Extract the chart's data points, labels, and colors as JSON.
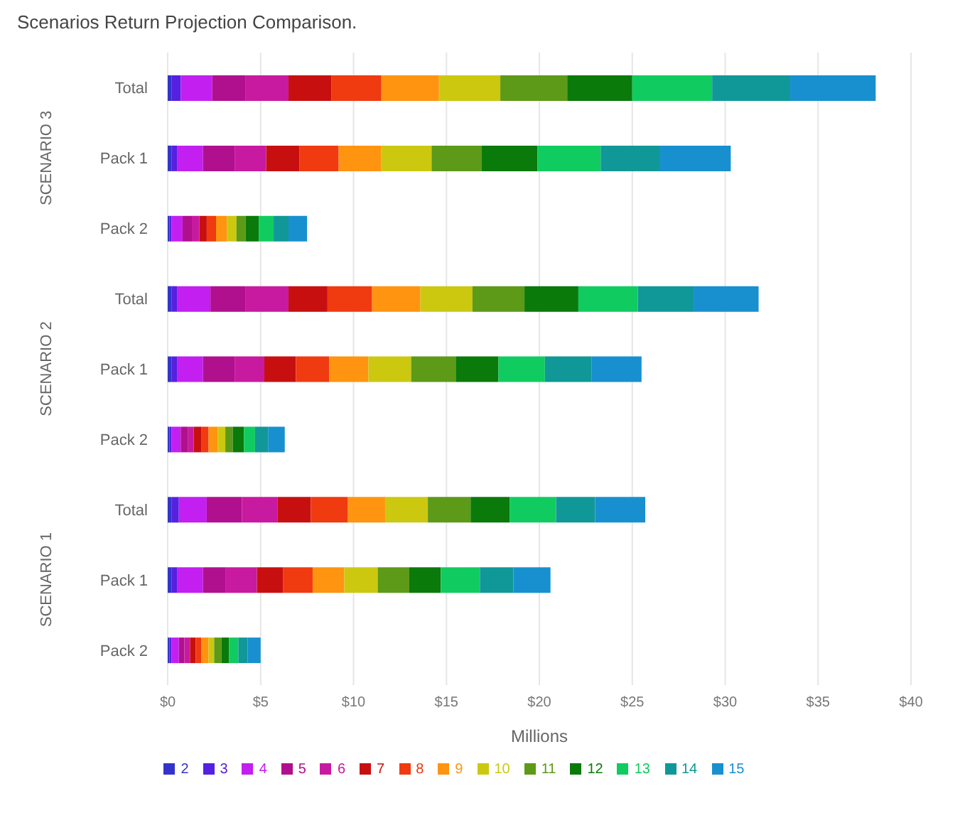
{
  "chart_data": {
    "type": "bar",
    "orientation": "horizontal",
    "stacked": true,
    "title": "Scenarios Return Projection Comparison.",
    "xlabel": "Millions",
    "categories": [
      "Total",
      "Pack 1",
      "Pack 2",
      "Total",
      "Pack 1",
      "Pack 2",
      "Total",
      "Pack 1",
      "Pack 2"
    ],
    "annotations": [
      "SCENARIO 3",
      "SCENARIO 2",
      "SCENARIO 1"
    ],
    "series": [
      {
        "name": "2",
        "color": "#3333cc",
        "values": [
          0.2,
          0.2,
          0.1,
          0.2,
          0.2,
          0.1,
          0.2,
          0.2,
          0.1
        ]
      },
      {
        "name": "3",
        "color": "#5520e0",
        "values": [
          0.5,
          0.3,
          0.1,
          0.3,
          0.3,
          0.1,
          0.4,
          0.3,
          0.1
        ]
      },
      {
        "name": "4",
        "color": "#c21ff0",
        "values": [
          1.7,
          1.4,
          0.6,
          1.8,
          1.4,
          0.5,
          1.5,
          1.4,
          0.4
        ]
      },
      {
        "name": "5",
        "color": "#b0108e",
        "values": [
          1.8,
          1.7,
          0.5,
          1.9,
          1.7,
          0.4,
          1.9,
          1.2,
          0.3
        ]
      },
      {
        "name": "6",
        "color": "#c81aa0",
        "values": [
          2.3,
          1.7,
          0.4,
          2.3,
          1.6,
          0.3,
          1.9,
          1.7,
          0.3
        ]
      },
      {
        "name": "7",
        "color": "#c80f10",
        "values": [
          2.3,
          1.8,
          0.4,
          2.1,
          1.7,
          0.4,
          1.8,
          1.4,
          0.3
        ]
      },
      {
        "name": "8",
        "color": "#f03a10",
        "values": [
          2.7,
          2.1,
          0.5,
          2.4,
          1.8,
          0.4,
          2.0,
          1.6,
          0.3
        ]
      },
      {
        "name": "9",
        "color": "#ff9410",
        "values": [
          3.1,
          2.3,
          0.6,
          2.6,
          2.1,
          0.5,
          2.0,
          1.7,
          0.4
        ]
      },
      {
        "name": "10",
        "color": "#ccc810",
        "values": [
          3.3,
          2.7,
          0.5,
          2.8,
          2.3,
          0.4,
          2.3,
          1.8,
          0.3
        ]
      },
      {
        "name": "11",
        "color": "#5c9a18",
        "values": [
          3.6,
          2.7,
          0.5,
          2.8,
          2.4,
          0.4,
          2.3,
          1.7,
          0.4
        ]
      },
      {
        "name": "12",
        "color": "#0a7a0a",
        "values": [
          3.5,
          3.0,
          0.7,
          2.9,
          2.3,
          0.6,
          2.1,
          1.7,
          0.4
        ]
      },
      {
        "name": "13",
        "color": "#10cc60",
        "values": [
          4.3,
          3.4,
          0.8,
          3.2,
          2.5,
          0.6,
          2.5,
          2.1,
          0.5
        ]
      },
      {
        "name": "14",
        "color": "#109898",
        "values": [
          4.2,
          3.2,
          0.8,
          3.0,
          2.5,
          0.7,
          2.1,
          1.8,
          0.5
        ]
      },
      {
        "name": "15",
        "color": "#1890d0",
        "values": [
          4.6,
          3.8,
          1.0,
          3.5,
          2.7,
          0.9,
          2.7,
          2.0,
          0.7
        ]
      }
    ],
    "xlim": [
      0,
      40
    ],
    "xticks": [
      {
        "value": 0,
        "label": "$0"
      },
      {
        "value": 5,
        "label": "$5"
      },
      {
        "value": 10,
        "label": "$10"
      },
      {
        "value": 15,
        "label": "$15"
      },
      {
        "value": 20,
        "label": "$20"
      },
      {
        "value": 25,
        "label": "$25"
      },
      {
        "value": 30,
        "label": "$30"
      },
      {
        "value": 35,
        "label": "$35"
      },
      {
        "value": 40,
        "label": "$40"
      }
    ],
    "grid": "x",
    "legend": "bottom"
  }
}
